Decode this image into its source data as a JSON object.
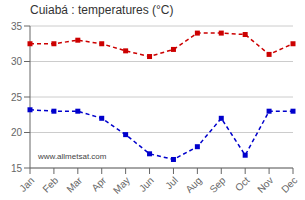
{
  "chart_data": {
    "type": "line",
    "title": "Cuiabá : temperatures (°C)",
    "categories": [
      "Jan",
      "Feb",
      "Mar",
      "Apr",
      "May",
      "Jun",
      "Jul",
      "Aug",
      "Sep",
      "Oct",
      "Nov",
      "Dec"
    ],
    "series": [
      {
        "color": "#cc0000",
        "values": [
          32.5,
          32.5,
          33.0,
          32.5,
          31.5,
          30.7,
          31.7,
          34.0,
          34.0,
          33.8,
          31.0,
          32.5
        ]
      },
      {
        "color": "#0000cc",
        "values": [
          23.2,
          23.0,
          23.0,
          22.0,
          19.7,
          17.0,
          16.2,
          18.0,
          22.0,
          16.8,
          23.0,
          23.0
        ]
      }
    ],
    "ylim": [
      15,
      35
    ],
    "yticks": [
      15,
      20,
      25,
      30,
      35
    ],
    "grid": true,
    "marker": "square",
    "line_style": "dashed",
    "annotations": [
      "www.allmetsat.com"
    ]
  }
}
